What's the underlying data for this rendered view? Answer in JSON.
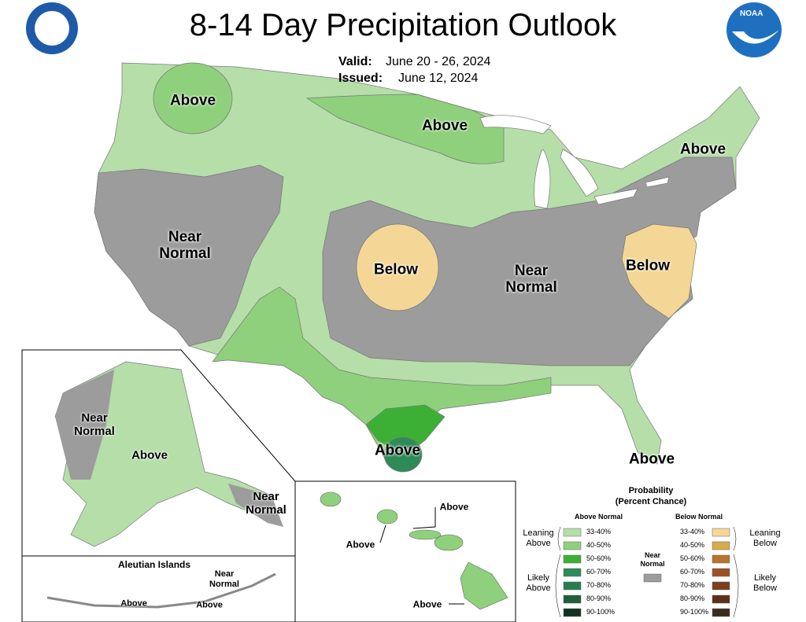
{
  "header": {
    "title": "8-14 Day Precipitation Outlook",
    "valid_label": "Valid:",
    "valid": "June 20 - 26, 2024",
    "issued_label": "Issued:",
    "issued": "June 12, 2024",
    "logo": "NOAA"
  },
  "map_labels": [
    "Above",
    "Above",
    "Above",
    "Near Normal",
    "Below",
    "Near Normal",
    "Below",
    "Above",
    "Above",
    "Near Normal",
    "Above",
    "Near Normal",
    "Above",
    "Above",
    "Above",
    "Near Normal",
    "Above",
    "Above"
  ],
  "insets": {
    "aleutian_title": "Aleutian Islands"
  },
  "legend": {
    "title": "Probability",
    "subtitle": "(Percent Chance)",
    "above_heading": "Above Normal",
    "below_heading": "Below Normal",
    "near_normal": "Near Normal",
    "above_bins": [
      "33-40%",
      "40-50%",
      "50-60%",
      "60-70%",
      "70-80%",
      "80-90%",
      "90-100%"
    ],
    "below_bins": [
      "33-40%",
      "40-50%",
      "50-60%",
      "60-70%",
      "70-80%",
      "80-90%",
      "90-100%"
    ],
    "leaning_above": "Leaning Above",
    "likely_above": "Likely Above",
    "leaning_below": "Leaning Below",
    "likely_below": "Likely Below"
  }
}
